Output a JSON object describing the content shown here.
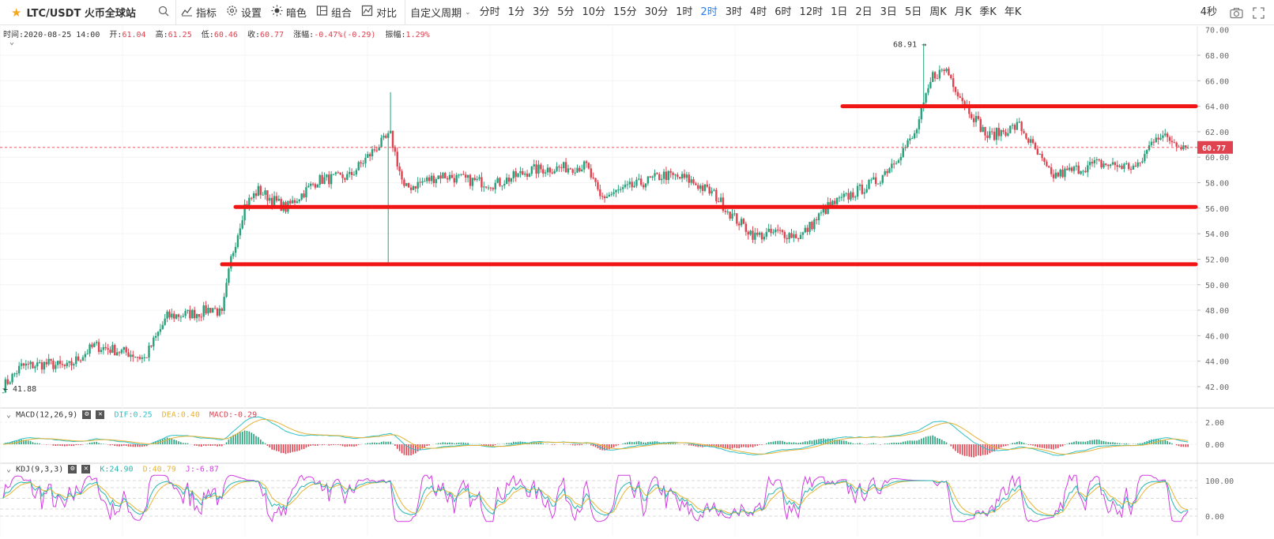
{
  "toolbar": {
    "symbol": "LTC/USDT 火币全球站",
    "indicators_label": "指标",
    "settings_label": "设置",
    "dark_label": "暗色",
    "combo_label": "组合",
    "compare_label": "对比",
    "custom_period_label": "自定义周期",
    "periods": [
      "分时",
      "1分",
      "3分",
      "5分",
      "10分",
      "15分",
      "30分",
      "1时",
      "2时",
      "3时",
      "4时",
      "6时",
      "12时",
      "1日",
      "2日",
      "3日",
      "5日",
      "周K",
      "月K",
      "季K",
      "年K"
    ],
    "active_period": "2时",
    "refresh_label": "4秒"
  },
  "ohlc": {
    "time_label": "时间:2020-08-25 14:00",
    "open_label": "开:",
    "open": "61.04",
    "high_label": "高:",
    "high": "61.25",
    "low_label": "低:",
    "low": "60.46",
    "close_label": "收:",
    "close": "60.77",
    "change_label": "涨幅:",
    "change": "-0.47%(-0.29)",
    "amp_label": "振幅:",
    "amp": "1.29%"
  },
  "price_axis": [
    "68.00",
    "66.00",
    "64.00",
    "62.00",
    "60.00",
    "58.00",
    "56.00",
    "54.00",
    "52.00",
    "50.00",
    "48.00",
    "46.00",
    "44.00",
    "42.00"
  ],
  "price_axis_top_partial": "70.00",
  "last_price": "60.77",
  "max_marker": "68.91",
  "min_marker": "41.88",
  "support_resistance_lines": [
    64.0,
    56.1,
    51.6
  ],
  "macd": {
    "title": "MACD(12,26,9)",
    "dif": "DIF:0.25",
    "dea": "DEA:0.40",
    "macd": "MACD:-0.29",
    "axis": [
      "2.00",
      "0.00"
    ]
  },
  "kdj": {
    "title": "KDJ(9,3,3)",
    "k": "K:24.90",
    "d": "D:40.79",
    "j": "J:-6.87",
    "axis": [
      "100.00",
      "0.00"
    ]
  },
  "colors": {
    "up": "#26a17b",
    "down": "#e0424f",
    "line": "#f11616",
    "dif": "#2fc1c8",
    "dea": "#e5b335",
    "k": "#25b6b1",
    "d": "#e8b534",
    "j": "#d23de0",
    "accent": "#2b7de9"
  },
  "chart_data": {
    "type": "candlestick",
    "waypoints": [
      [
        0,
        42.0
      ],
      [
        8,
        43.6
      ],
      [
        20,
        43.8
      ],
      [
        28,
        43.5
      ],
      [
        40,
        45.2
      ],
      [
        56,
        44.6
      ],
      [
        62,
        44.2
      ],
      [
        72,
        47.5
      ],
      [
        86,
        47.8
      ],
      [
        92,
        48.2
      ],
      [
        96,
        47.6
      ],
      [
        100,
        52.0
      ],
      [
        106,
        56.2
      ],
      [
        112,
        57.4
      ],
      [
        124,
        56.0
      ],
      [
        138,
        58.2
      ],
      [
        152,
        58.5
      ],
      [
        164,
        60.8
      ],
      [
        170,
        61.7
      ],
      [
        176,
        57.5
      ],
      [
        192,
        58.6
      ],
      [
        204,
        58.2
      ],
      [
        216,
        57.9
      ],
      [
        232,
        59.0
      ],
      [
        256,
        59.3
      ],
      [
        262,
        56.8
      ],
      [
        290,
        58.6
      ],
      [
        300,
        58.3
      ],
      [
        312,
        57.1
      ],
      [
        320,
        55.4
      ],
      [
        330,
        53.8
      ],
      [
        340,
        54.1
      ],
      [
        350,
        53.8
      ],
      [
        362,
        56.1
      ],
      [
        384,
        58.2
      ],
      [
        400,
        61.7
      ],
      [
        408,
        66.4
      ],
      [
        414,
        66.9
      ],
      [
        420,
        64.8
      ],
      [
        432,
        61.6
      ],
      [
        446,
        62.5
      ],
      [
        460,
        58.5
      ],
      [
        480,
        59.5
      ],
      [
        498,
        59.2
      ],
      [
        506,
        61.8
      ],
      [
        516,
        61.1
      ],
      [
        520,
        60.8
      ]
    ]
  }
}
